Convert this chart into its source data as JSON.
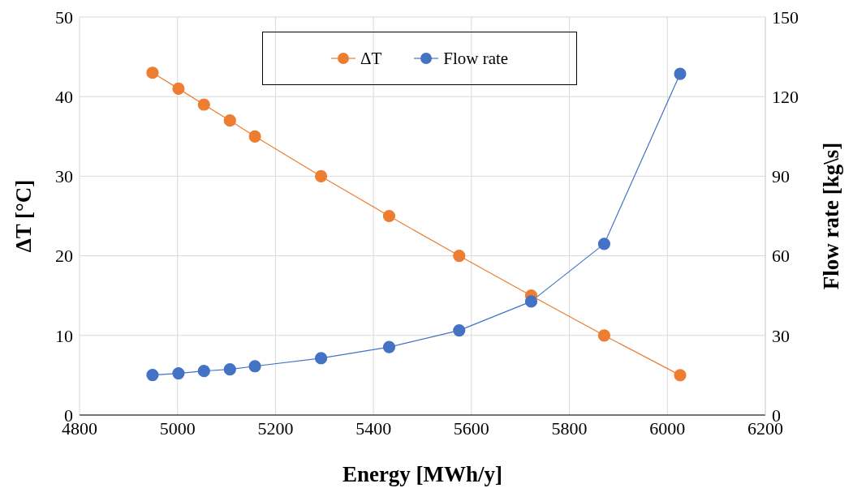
{
  "chart_data": {
    "type": "line",
    "xlabel": "Energy [MWh/y]",
    "ylabel": "ΔT [°C]",
    "y2label": "Flow rate [kg\\s]",
    "x": [
      4949,
      5002,
      5054,
      5107,
      5158,
      5293,
      5432,
      5575,
      5722,
      5871,
      6026
    ],
    "series": [
      {
        "name": "ΔT",
        "color": "#ed7d31",
        "values": [
          43,
          41,
          39,
          37,
          35,
          30,
          25,
          20,
          15,
          10,
          5
        ]
      },
      {
        "name": "Flow rate",
        "color": "#4472c4",
        "axis": "y2",
        "values": [
          15.1,
          15.7,
          16.6,
          17.2,
          18.4,
          21.4,
          25.6,
          31.9,
          42.8,
          64.5,
          128.6
        ]
      }
    ],
    "xlim": [
      4800,
      6200
    ],
    "xticks": [
      4800,
      5000,
      5200,
      5400,
      5600,
      5800,
      6000,
      6200
    ],
    "ylim": [
      0,
      50
    ],
    "yticks": [
      0,
      10,
      20,
      30,
      40,
      50
    ],
    "y2lim": [
      0,
      150
    ],
    "y2ticks": [
      0,
      30,
      60,
      90,
      120,
      150
    ],
    "grid": true,
    "legend": "top",
    "marker": "circle",
    "line_style": "solid"
  }
}
